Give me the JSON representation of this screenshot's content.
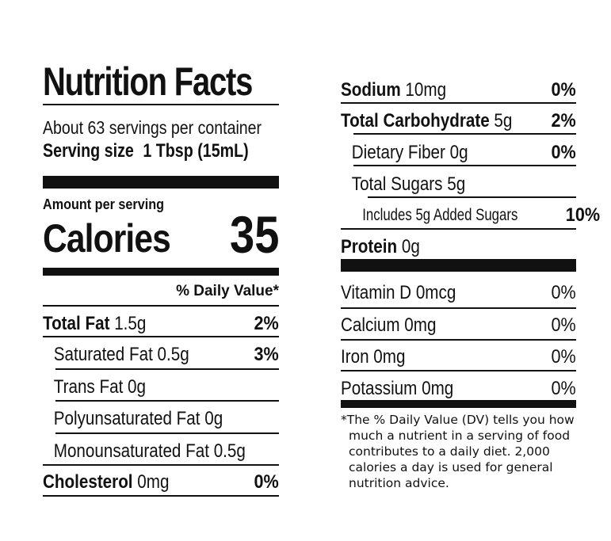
{
  "title": "Nutrition Facts",
  "servings_per_container": "About 63 servings per container",
  "serving_size": {
    "label": "Serving size",
    "value": "1 Tbsp (15mL)"
  },
  "amount_per_serving": "Amount per serving",
  "calories": {
    "label": "Calories",
    "value": "35"
  },
  "daily_value_header": "% Daily Value*",
  "left_nutrients": [
    {
      "name": "Total Fat",
      "amount": "1.5g",
      "dv": "2%"
    },
    {
      "name": "Saturated Fat 0.5g",
      "amount": "",
      "dv": "3%"
    },
    {
      "name": "Trans Fat 0g",
      "amount": "",
      "dv": ""
    },
    {
      "name": "Polyunsaturated Fat 0g",
      "amount": "",
      "dv": ""
    },
    {
      "name": "Monounsaturated Fat 0.5g",
      "amount": "",
      "dv": ""
    },
    {
      "name": "Cholesterol",
      "amount": "0mg",
      "dv": "0%"
    }
  ],
  "right_nutrients": [
    {
      "name": "Sodium",
      "amount": "10mg",
      "dv": "0%"
    },
    {
      "name": "Total Carbohydrate",
      "amount": "5g",
      "dv": "2%"
    },
    {
      "name": "Dietary Fiber 0g",
      "amount": "",
      "dv": "0%"
    },
    {
      "name": "Total Sugars 5g",
      "amount": "",
      "dv": ""
    },
    {
      "name": "Includes 5g Added Sugars",
      "amount": "",
      "dv": "10%"
    },
    {
      "name": "Protein",
      "amount": "0g",
      "dv": ""
    }
  ],
  "vitamins": [
    {
      "name": "Vitamin D 0mcg",
      "dv": "0%"
    },
    {
      "name": "Calcium 0mg",
      "dv": "0%"
    },
    {
      "name": "Iron 0mg",
      "dv": "0%"
    },
    {
      "name": "Potassium 0mg",
      "dv": "0%"
    }
  ],
  "footnote_lines": [
    "*The % Daily Value (DV) tells you how",
    "much a nutrient in a serving of food",
    "contributes to a daily diet. 2,000",
    "calories a day is used for general",
    "nutrition advice."
  ]
}
